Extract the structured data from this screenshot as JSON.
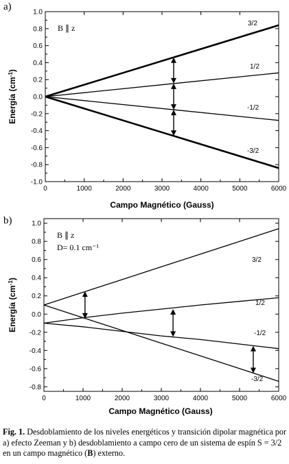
{
  "chart_data": [
    {
      "panel_label": "a)",
      "type": "line",
      "annotation_lines": [
        "B ∥ z"
      ],
      "xlabel": "Campo Magnético (Gauss)",
      "ylabel": "Energía (cm",
      "ylabel_sup": "-1",
      "ylabel_end": ")",
      "xlim": [
        0,
        6000
      ],
      "ylim": [
        -1.0,
        1.0
      ],
      "xticks": [
        0,
        1000,
        2000,
        3000,
        4000,
        5000,
        6000
      ],
      "xtick_labels": [
        "0",
        "1000",
        "2000",
        "3000",
        "4000",
        "5000",
        "6000"
      ],
      "yticks": [
        -1.0,
        -0.8,
        -0.6,
        -0.4,
        -0.2,
        0.0,
        0.2,
        0.4,
        0.6,
        0.8,
        1.0
      ],
      "ytick_labels": [
        "-1.0",
        "-0.8",
        "-0.6",
        "-0.4",
        "-0.2",
        "0.0",
        "0.2",
        "0.4",
        "0.6",
        "0.8",
        "1.0"
      ],
      "grid": false,
      "series": [
        {
          "name": "3/2",
          "x": [
            0,
            6000
          ],
          "y": [
            0.0,
            0.84
          ],
          "bold": true
        },
        {
          "name": "1/2",
          "x": [
            0,
            6000
          ],
          "y": [
            0.0,
            0.28
          ],
          "bold": false
        },
        {
          "name": "-1/2",
          "x": [
            0,
            6000
          ],
          "y": [
            0.0,
            -0.28
          ],
          "bold": false
        },
        {
          "name": "-3/2",
          "x": [
            0,
            6000
          ],
          "y": [
            0.0,
            -0.84
          ],
          "bold": true
        }
      ],
      "transitions": [
        {
          "x": 3300,
          "y_from": 0.462,
          "y_to": 0.154
        },
        {
          "x": 3300,
          "y_from": 0.154,
          "y_to": -0.154
        },
        {
          "x": 3300,
          "y_from": -0.154,
          "y_to": -0.462
        }
      ]
    },
    {
      "panel_label": "b)",
      "type": "line",
      "annotation_lines": [
        "B ∥ z",
        "D= 0.1 cm⁻¹"
      ],
      "xlabel": "Campo Magnético (Gauss)",
      "ylabel": "Energía (cm",
      "ylabel_sup": "-1",
      "ylabel_end": ")",
      "xlim": [
        0,
        6000
      ],
      "ylim": [
        -0.85,
        1.05
      ],
      "xticks": [
        0,
        1000,
        2000,
        3000,
        4000,
        5000,
        6000
      ],
      "xtick_labels": [
        "0",
        "1000",
        "2000",
        "3000",
        "4000",
        "5000",
        "6000"
      ],
      "yticks": [
        -0.8,
        -0.6,
        -0.4,
        -0.2,
        0.0,
        0.2,
        0.4,
        0.6,
        0.8,
        1.0
      ],
      "ytick_labels": [
        "-0.8",
        "-0.6",
        "-0.4",
        "-0.2",
        "0.0",
        "0.2",
        "0.4",
        "0.6",
        "0.8",
        "1.0"
      ],
      "grid": false,
      "series": [
        {
          "name": "3/2",
          "x": [
            0,
            1000,
            2000,
            3000,
            4000,
            5000,
            6000
          ],
          "y": [
            0.1,
            0.24,
            0.38,
            0.52,
            0.66,
            0.8,
            0.94
          ],
          "bold": false
        },
        {
          "name": "1/2",
          "x": [
            0,
            1000,
            2000,
            3000,
            4000,
            5000,
            6000
          ],
          "y": [
            -0.1,
            -0.04,
            0.01,
            0.055,
            0.1,
            0.14,
            0.18
          ],
          "bold": false
        },
        {
          "name": "-1/2",
          "x": [
            0,
            1000,
            2000,
            3000,
            4000,
            5000,
            6000
          ],
          "y": [
            -0.1,
            -0.14,
            -0.19,
            -0.24,
            -0.28,
            -0.33,
            -0.38
          ],
          "bold": false
        },
        {
          "name": "-3/2",
          "x": [
            0,
            1000,
            2000,
            3000,
            4000,
            5000,
            6000
          ],
          "y": [
            0.1,
            -0.04,
            -0.18,
            -0.32,
            -0.46,
            -0.6,
            -0.74
          ],
          "bold": false
        }
      ],
      "transitions": [
        {
          "x": 1050,
          "y_from": 0.25,
          "y_to": -0.05
        },
        {
          "x": 3300,
          "y_from": 0.055,
          "y_to": -0.25
        },
        {
          "x": 5350,
          "y_from": -0.35,
          "y_to": -0.65
        }
      ]
    }
  ],
  "caption": {
    "label": "Fig. 1.",
    "text_1": " Desdoblamiento de los niveles energéticos y transición dipolar magnética por a) efecto Zeeman y b) desdoblamiento a campo cero de un sistema de espín S = 3/2 en un campo magnético (",
    "bold_symbol": "B",
    "text_2": ") externo."
  }
}
